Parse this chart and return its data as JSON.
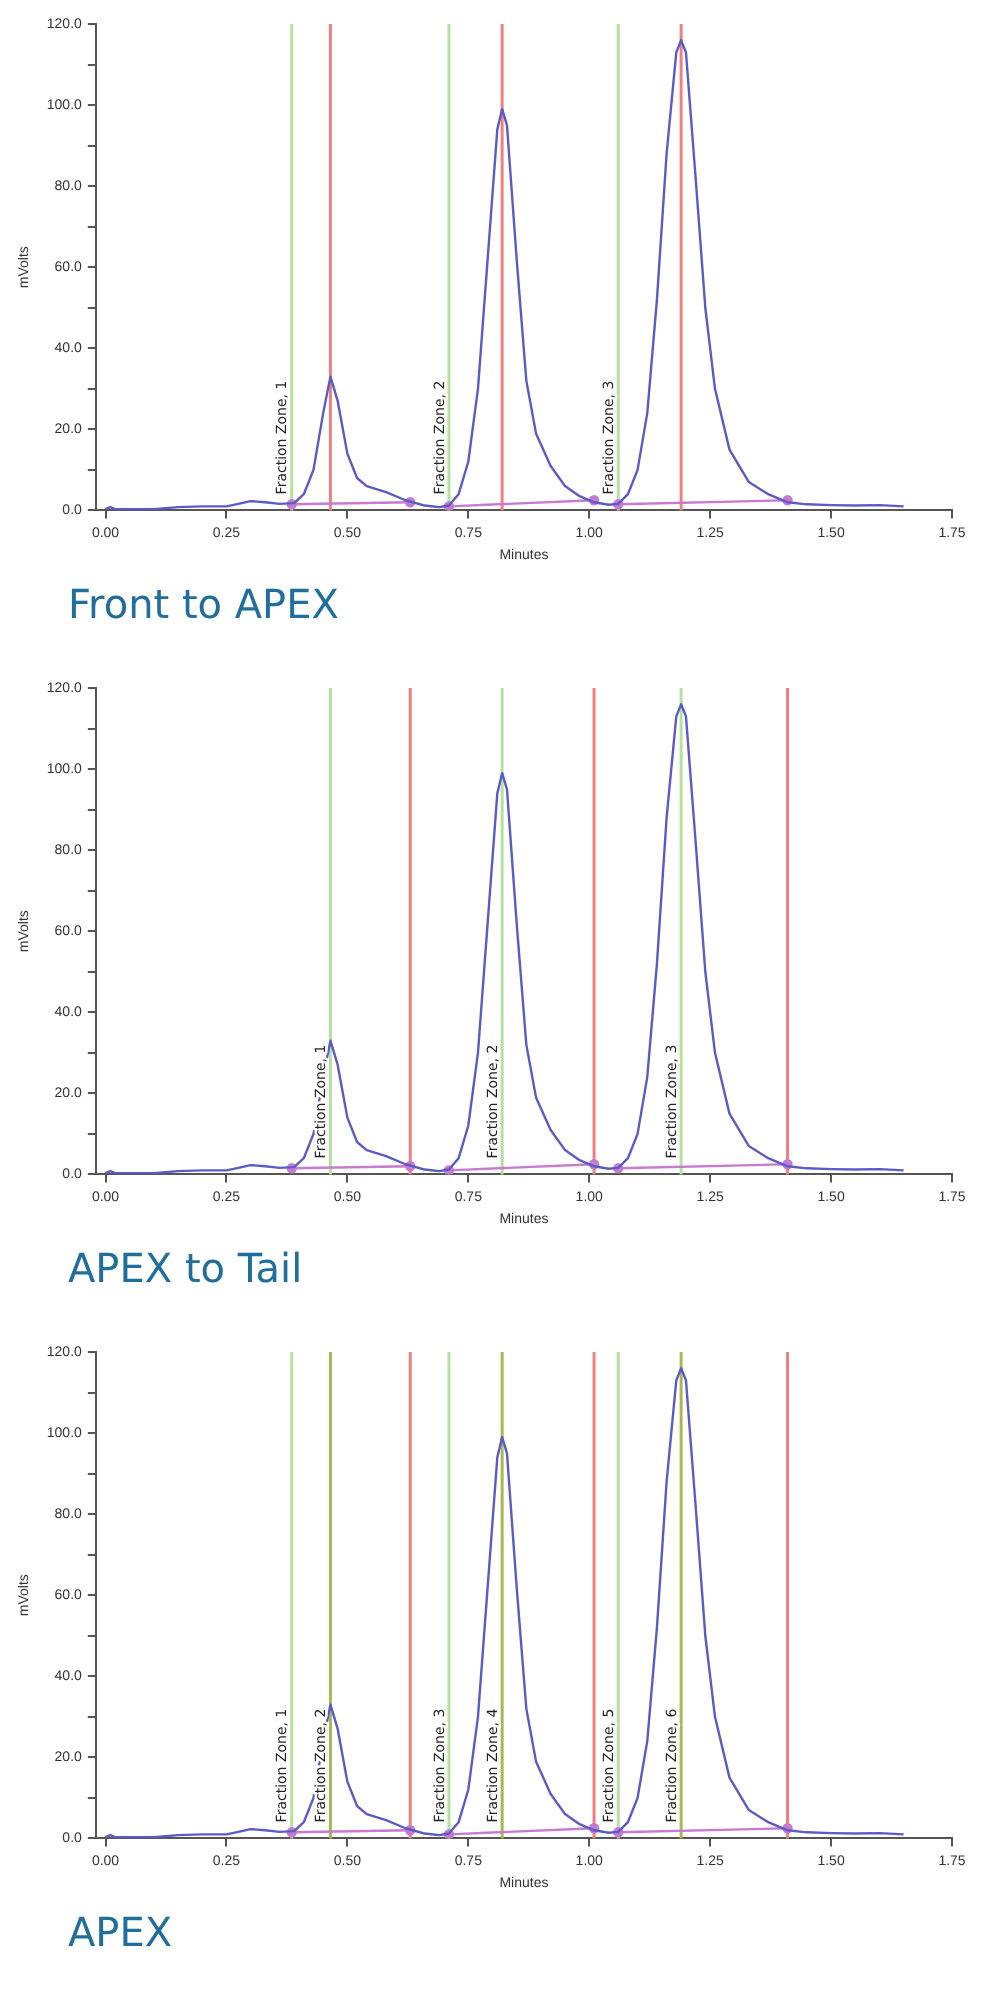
{
  "chart_data": [
    {
      "type": "line",
      "title": "Front to APEX",
      "xlabel": "Minutes",
      "ylabel": "mVolts",
      "marker": "none",
      "line_style": "solid",
      "xlim": [
        -0.02,
        1.75
      ],
      "xticks": [
        {
          "value": 0,
          "label": "0.00"
        },
        {
          "value": 0.25,
          "label": "0.25"
        },
        {
          "value": 0.5,
          "label": "0.50"
        },
        {
          "value": 0.75,
          "label": "0.75"
        },
        {
          "value": 1,
          "label": "1.00"
        },
        {
          "value": 1.25,
          "label": "1.25"
        },
        {
          "value": 1.5,
          "label": "1.50"
        },
        {
          "value": 1.75,
          "label": "1.75"
        }
      ],
      "ylim": [
        0,
        120
      ],
      "yticks": [
        {
          "value": 0,
          "label": "0.0"
        },
        {
          "value": 10,
          "label": null
        },
        {
          "value": 20,
          "label": "20.0"
        },
        {
          "value": 30,
          "label": null
        },
        {
          "value": 40,
          "label": "40.0"
        },
        {
          "value": 50,
          "label": null
        },
        {
          "value": 60,
          "label": "60.0"
        },
        {
          "value": 70,
          "label": null
        },
        {
          "value": 80,
          "label": "80.0"
        },
        {
          "value": 90,
          "label": null
        },
        {
          "value": 100,
          "label": "100.0"
        },
        {
          "value": 110,
          "label": null
        },
        {
          "value": 120,
          "label": "120.0"
        }
      ],
      "series": [
        {
          "color": "#5b5bc8",
          "x": [
            0,
            0.01,
            0.02,
            0.1,
            0.15,
            0.2,
            0.25,
            0.27,
            0.3,
            0.33,
            0.36,
            0.39,
            0.41,
            0.43,
            0.45,
            0.465,
            0.48,
            0.5,
            0.52,
            0.54,
            0.58,
            0.62,
            0.66,
            0.69,
            0.71,
            0.73,
            0.75,
            0.77,
            0.79,
            0.81,
            0.82,
            0.83,
            0.85,
            0.87,
            0.89,
            0.92,
            0.95,
            0.98,
            1.01,
            1.04,
            1.06,
            1.08,
            1.1,
            1.12,
            1.14,
            1.16,
            1.18,
            1.19,
            1.2,
            1.22,
            1.24,
            1.26,
            1.29,
            1.33,
            1.37,
            1.41,
            1.45,
            1.5,
            1.55,
            1.6,
            1.65
          ],
          "values": [
            0.3,
            0.8,
            0.3,
            0.3,
            0.8,
            1,
            1,
            1.5,
            2.3,
            2,
            1.6,
            1.8,
            4,
            10,
            24,
            33,
            27,
            14,
            8,
            6,
            4.5,
            2.5,
            1.2,
            0.8,
            1.2,
            4,
            12,
            30,
            62,
            94,
            99,
            95,
            62,
            32,
            19,
            11,
            6,
            3.5,
            2,
            1.4,
            1.6,
            4,
            10,
            24,
            52,
            88,
            113,
            116,
            113,
            82,
            50,
            30,
            15,
            7,
            4,
            2,
            1.5,
            1.3,
            1.2,
            1.3,
            1
          ]
        },
        {
          "color": "#c77ad0",
          "marker": "circle",
          "x": [
            0.385,
            0.63,
            0.67,
            0.71,
            1.01,
            1.035,
            1.06,
            1.41
          ],
          "values": [
            1.5,
            2,
            null,
            1,
            2.5,
            null,
            1.5,
            2.5
          ]
        }
      ],
      "ref_lines": [
        {
          "axis": "x",
          "value": 0.385,
          "label": "Fraction Zone, 1",
          "color": "#b5e0a0"
        },
        {
          "axis": "x",
          "value": 0.465,
          "color": "#f08080"
        },
        {
          "axis": "x",
          "value": 0.71,
          "label": "Fraction Zone, 2",
          "color": "#b5e0a0"
        },
        {
          "axis": "x",
          "value": 0.82,
          "color": "#f08080"
        },
        {
          "axis": "x",
          "value": 1.06,
          "label": "Fraction Zone, 3",
          "color": "#b5e0a0"
        },
        {
          "axis": "x",
          "value": 1.19,
          "color": "#f08080"
        }
      ]
    },
    {
      "type": "line",
      "title": "APEX to Tail",
      "xlabel": "Minutes",
      "ylabel": "mVolts",
      "marker": "none",
      "line_style": "solid",
      "xlim": [
        -0.02,
        1.75
      ],
      "xticks": [
        {
          "value": 0,
          "label": "0.00"
        },
        {
          "value": 0.25,
          "label": "0.25"
        },
        {
          "value": 0.5,
          "label": "0.50"
        },
        {
          "value": 0.75,
          "label": "0.75"
        },
        {
          "value": 1,
          "label": "1.00"
        },
        {
          "value": 1.25,
          "label": "1.25"
        },
        {
          "value": 1.5,
          "label": "1.50"
        },
        {
          "value": 1.75,
          "label": "1.75"
        }
      ],
      "ylim": [
        0,
        120
      ],
      "yticks": [
        {
          "value": 0,
          "label": "0.0"
        },
        {
          "value": 10,
          "label": null
        },
        {
          "value": 20,
          "label": "20.0"
        },
        {
          "value": 30,
          "label": null
        },
        {
          "value": 40,
          "label": "40.0"
        },
        {
          "value": 50,
          "label": null
        },
        {
          "value": 60,
          "label": "60.0"
        },
        {
          "value": 70,
          "label": null
        },
        {
          "value": 80,
          "label": "80.0"
        },
        {
          "value": 90,
          "label": null
        },
        {
          "value": 100,
          "label": "100.0"
        },
        {
          "value": 110,
          "label": null
        },
        {
          "value": 120,
          "label": "120.0"
        }
      ],
      "series": [
        {
          "color": "#5b5bc8",
          "x": [
            0,
            0.01,
            0.02,
            0.1,
            0.15,
            0.2,
            0.25,
            0.27,
            0.3,
            0.33,
            0.36,
            0.39,
            0.41,
            0.43,
            0.45,
            0.465,
            0.48,
            0.5,
            0.52,
            0.54,
            0.58,
            0.62,
            0.66,
            0.69,
            0.71,
            0.73,
            0.75,
            0.77,
            0.79,
            0.81,
            0.82,
            0.83,
            0.85,
            0.87,
            0.89,
            0.92,
            0.95,
            0.98,
            1.01,
            1.04,
            1.06,
            1.08,
            1.1,
            1.12,
            1.14,
            1.16,
            1.18,
            1.19,
            1.2,
            1.22,
            1.24,
            1.26,
            1.29,
            1.33,
            1.37,
            1.41,
            1.45,
            1.5,
            1.55,
            1.6,
            1.65
          ],
          "values": [
            0.3,
            0.8,
            0.3,
            0.3,
            0.8,
            1,
            1,
            1.5,
            2.3,
            2,
            1.6,
            1.8,
            4,
            10,
            24,
            33,
            27,
            14,
            8,
            6,
            4.5,
            2.5,
            1.2,
            0.8,
            1.2,
            4,
            12,
            30,
            62,
            94,
            99,
            95,
            62,
            32,
            19,
            11,
            6,
            3.5,
            2,
            1.4,
            1.6,
            4,
            10,
            24,
            52,
            88,
            113,
            116,
            113,
            82,
            50,
            30,
            15,
            7,
            4,
            2,
            1.5,
            1.3,
            1.2,
            1.3,
            1
          ]
        },
        {
          "color": "#c77ad0",
          "marker": "circle",
          "x": [
            0.385,
            0.63,
            0.67,
            0.71,
            1.01,
            1.035,
            1.06,
            1.41
          ],
          "values": [
            1.5,
            2,
            null,
            1,
            2.5,
            null,
            1.5,
            2.5
          ]
        }
      ],
      "ref_lines": [
        {
          "axis": "x",
          "value": 0.465,
          "label": "Fraction Zone, 1",
          "color": "#b5e0a0"
        },
        {
          "axis": "x",
          "value": 0.63,
          "color": "#f08080"
        },
        {
          "axis": "x",
          "value": 0.82,
          "label": "Fraction Zone, 2",
          "color": "#b5e0a0"
        },
        {
          "axis": "x",
          "value": 1.01,
          "color": "#f08080"
        },
        {
          "axis": "x",
          "value": 1.19,
          "label": "Fraction Zone, 3",
          "color": "#b5e0a0"
        },
        {
          "axis": "x",
          "value": 1.41,
          "color": "#f08080"
        }
      ]
    },
    {
      "type": "line",
      "title": "APEX",
      "xlabel": "Minutes",
      "ylabel": "mVolts",
      "marker": "none",
      "line_style": "solid",
      "xlim": [
        -0.02,
        1.75
      ],
      "xticks": [
        {
          "value": 0,
          "label": "0.00"
        },
        {
          "value": 0.25,
          "label": "0.25"
        },
        {
          "value": 0.5,
          "label": "0.50"
        },
        {
          "value": 0.75,
          "label": "0.75"
        },
        {
          "value": 1,
          "label": "1.00"
        },
        {
          "value": 1.25,
          "label": "1.25"
        },
        {
          "value": 1.5,
          "label": "1.50"
        },
        {
          "value": 1.75,
          "label": "1.75"
        }
      ],
      "ylim": [
        0,
        120
      ],
      "yticks": [
        {
          "value": 0,
          "label": "0.0"
        },
        {
          "value": 10,
          "label": null
        },
        {
          "value": 20,
          "label": "20.0"
        },
        {
          "value": 30,
          "label": null
        },
        {
          "value": 40,
          "label": "40.0"
        },
        {
          "value": 50,
          "label": null
        },
        {
          "value": 60,
          "label": "60.0"
        },
        {
          "value": 70,
          "label": null
        },
        {
          "value": 80,
          "label": "80.0"
        },
        {
          "value": 90,
          "label": null
        },
        {
          "value": 100,
          "label": "100.0"
        },
        {
          "value": 110,
          "label": null
        },
        {
          "value": 120,
          "label": "120.0"
        }
      ],
      "series": [
        {
          "color": "#5b5bc8",
          "x": [
            0,
            0.01,
            0.02,
            0.1,
            0.15,
            0.2,
            0.25,
            0.27,
            0.3,
            0.33,
            0.36,
            0.39,
            0.41,
            0.43,
            0.45,
            0.465,
            0.48,
            0.5,
            0.52,
            0.54,
            0.58,
            0.62,
            0.66,
            0.69,
            0.71,
            0.73,
            0.75,
            0.77,
            0.79,
            0.81,
            0.82,
            0.83,
            0.85,
            0.87,
            0.89,
            0.92,
            0.95,
            0.98,
            1.01,
            1.04,
            1.06,
            1.08,
            1.1,
            1.12,
            1.14,
            1.16,
            1.18,
            1.19,
            1.2,
            1.22,
            1.24,
            1.26,
            1.29,
            1.33,
            1.37,
            1.41,
            1.45,
            1.5,
            1.55,
            1.6,
            1.65
          ],
          "values": [
            0.3,
            0.8,
            0.3,
            0.3,
            0.8,
            1,
            1,
            1.5,
            2.3,
            2,
            1.6,
            1.8,
            4,
            10,
            24,
            33,
            27,
            14,
            8,
            6,
            4.5,
            2.5,
            1.2,
            0.8,
            1.2,
            4,
            12,
            30,
            62,
            94,
            99,
            95,
            62,
            32,
            19,
            11,
            6,
            3.5,
            2,
            1.4,
            1.6,
            4,
            10,
            24,
            52,
            88,
            113,
            116,
            113,
            82,
            50,
            30,
            15,
            7,
            4,
            2,
            1.5,
            1.3,
            1.2,
            1.3,
            1
          ]
        },
        {
          "color": "#c77ad0",
          "marker": "circle",
          "x": [
            0.385,
            0.63,
            0.67,
            0.71,
            1.01,
            1.035,
            1.06,
            1.41
          ],
          "values": [
            1.5,
            2,
            null,
            1,
            2.5,
            null,
            1.5,
            2.5
          ]
        }
      ],
      "ref_lines": [
        {
          "axis": "x",
          "value": 0.385,
          "label": "Fraction Zone, 1",
          "color": "#b5e0a0"
        },
        {
          "axis": "x",
          "value": 0.465,
          "label": "Fraction Zone, 2",
          "color": "#a8b850"
        },
        {
          "axis": "x",
          "value": 0.63,
          "color": "#f08080"
        },
        {
          "axis": "x",
          "value": 0.71,
          "label": "Fraction Zone, 3",
          "color": "#b5e0a0"
        },
        {
          "axis": "x",
          "value": 0.82,
          "label": "Fraction Zone, 4",
          "color": "#a8b850"
        },
        {
          "axis": "x",
          "value": 1.01,
          "color": "#f08080"
        },
        {
          "axis": "x",
          "value": 1.06,
          "label": "Fraction Zone, 5",
          "color": "#b5e0a0"
        },
        {
          "axis": "x",
          "value": 1.19,
          "label": "Fraction Zone, 6",
          "color": "#a8b850"
        },
        {
          "axis": "x",
          "value": 1.41,
          "color": "#f08080"
        }
      ]
    }
  ]
}
